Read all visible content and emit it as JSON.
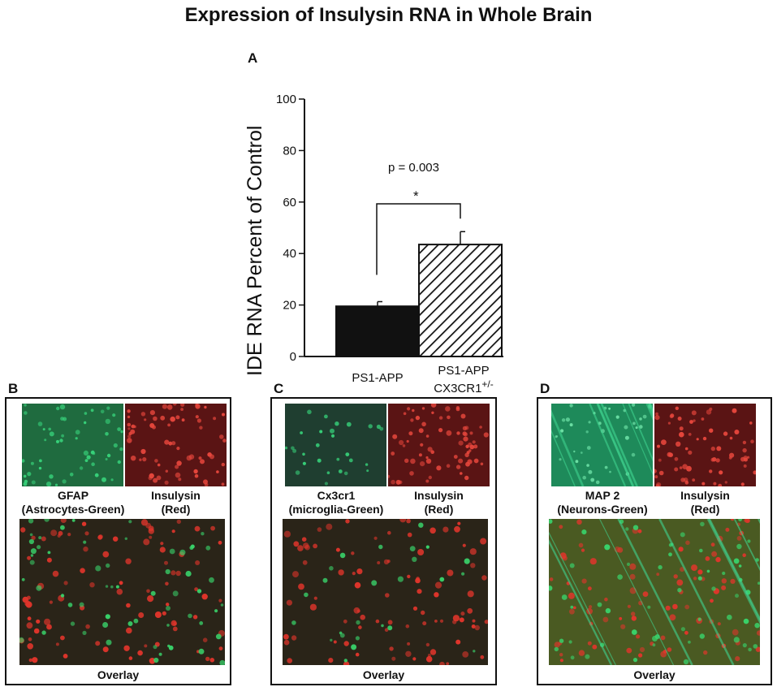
{
  "title": "Expression of Insulysin RNA in Whole Brain",
  "panel_a": {
    "label": "A",
    "stat_text": "p = 0.003",
    "sig_mark": "*"
  },
  "chart_data": {
    "type": "bar",
    "title": "",
    "ylabel": "IDE RNA Percent of Control",
    "xlabel": "",
    "ylim": [
      0,
      100
    ],
    "yticks": [
      0,
      20,
      40,
      60,
      80,
      100
    ],
    "categories": [
      "PS1-APP",
      "PS1-APP CX3CR1+/-"
    ],
    "category_lines": [
      [
        "PS1-APP"
      ],
      [
        "PS1-APP",
        "CX3CR1",
        "+/-"
      ]
    ],
    "values": [
      19.5,
      43.5
    ],
    "errors": [
      1.8,
      5
    ],
    "fills": [
      "solid-black",
      "diagonal-hatch"
    ],
    "bar_color": "#111111",
    "annotation": {
      "text": "p = 0.003",
      "bracket": "*"
    }
  },
  "panels": [
    {
      "label": "B",
      "left_caption": [
        "GFAP",
        "(Astrocytes-Green)"
      ],
      "right_caption": [
        "Insulysin",
        "(Red)"
      ],
      "bottom_caption": "Overlay",
      "green_color": "#1f6b3f",
      "red_color": "#5a1414"
    },
    {
      "label": "C",
      "left_caption": [
        "Cx3cr1",
        "(microglia-Green)"
      ],
      "right_caption": [
        "Insulysin",
        "(Red)"
      ],
      "bottom_caption": "Overlay",
      "green_color": "#1f3e30",
      "red_color": "#5a1414"
    },
    {
      "label": "D",
      "left_caption": [
        "MAP 2",
        "(Neurons-Green)"
      ],
      "right_caption": [
        "Insulysin",
        "(Red)"
      ],
      "bottom_caption": "Overlay",
      "green_color": "#1e8a5a",
      "red_color": "#5a1414"
    }
  ]
}
